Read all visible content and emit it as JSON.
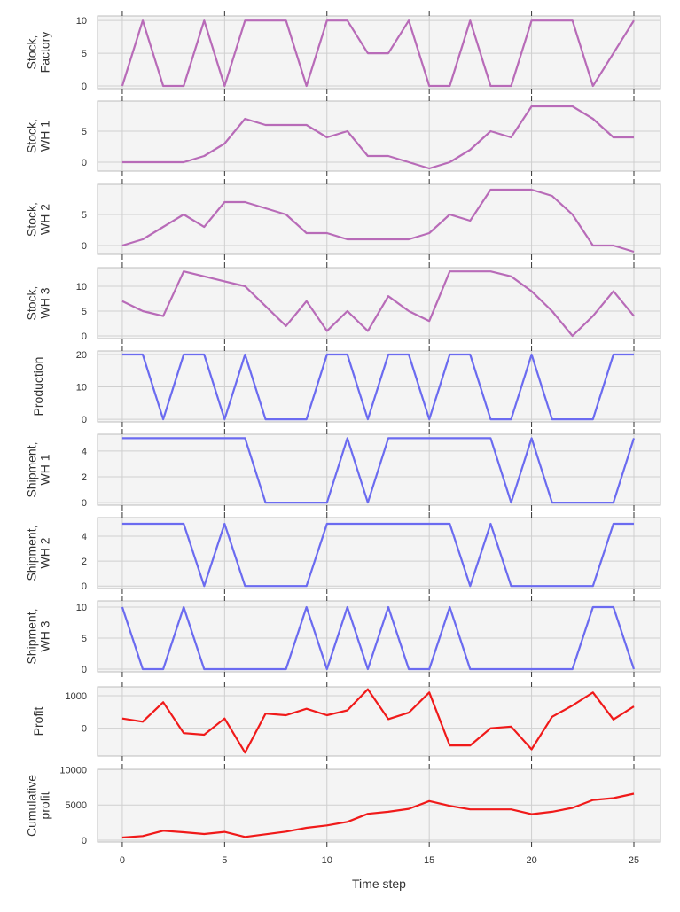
{
  "chart_data": [
    {
      "type": "line",
      "ylabel": [
        "Stock,",
        "Factory"
      ],
      "color": "#b86bb8",
      "ylim": [
        -0.4,
        10.7
      ],
      "yticks": [
        0,
        5,
        10
      ],
      "x": [
        0,
        1,
        2,
        3,
        4,
        5,
        6,
        7,
        8,
        9,
        10,
        11,
        12,
        13,
        14,
        15,
        16,
        17,
        18,
        19,
        20,
        21,
        22,
        23,
        24,
        25
      ],
      "values": [
        0,
        10,
        0,
        0,
        10,
        0,
        10,
        10,
        10,
        0,
        10,
        10,
        5,
        5,
        10,
        0,
        0,
        10,
        0,
        0,
        10,
        10,
        10,
        0,
        5,
        10
      ]
    },
    {
      "type": "line",
      "ylabel": [
        "Stock,",
        "WH 1"
      ],
      "color": "#b86bb8",
      "ylim": [
        -1.43,
        9.86
      ],
      "yticks": [
        0,
        5
      ],
      "x": [
        0,
        1,
        2,
        3,
        4,
        5,
        6,
        7,
        8,
        9,
        10,
        11,
        12,
        13,
        14,
        15,
        16,
        17,
        18,
        19,
        20,
        21,
        22,
        23,
        24,
        25
      ],
      "values": [
        0,
        0,
        0,
        0,
        1,
        3,
        7,
        6,
        6,
        6,
        4,
        5,
        1,
        1,
        0,
        -1,
        0,
        2,
        5,
        4,
        9,
        9,
        9,
        7,
        4,
        4
      ]
    },
    {
      "type": "line",
      "ylabel": [
        "Stock,",
        "WH 2"
      ],
      "color": "#b86bb8",
      "ylim": [
        -1.43,
        9.86
      ],
      "yticks": [
        0,
        5
      ],
      "x": [
        0,
        1,
        2,
        3,
        4,
        5,
        6,
        7,
        8,
        9,
        10,
        11,
        12,
        13,
        14,
        15,
        16,
        17,
        18,
        19,
        20,
        21,
        22,
        23,
        24,
        25
      ],
      "values": [
        0,
        1,
        3,
        5,
        3,
        7,
        7,
        6,
        5,
        2,
        2,
        1,
        1,
        1,
        1,
        2,
        5,
        4,
        9,
        9,
        9,
        8,
        5,
        0,
        0,
        -1
      ]
    },
    {
      "type": "line",
      "ylabel": [
        "Stock,",
        "WH 3"
      ],
      "color": "#b86bb8",
      "ylim": [
        -0.54,
        13.75
      ],
      "yticks": [
        0,
        5,
        10
      ],
      "x": [
        0,
        1,
        2,
        3,
        4,
        5,
        6,
        7,
        8,
        9,
        10,
        11,
        12,
        13,
        14,
        15,
        16,
        17,
        18,
        19,
        20,
        21,
        22,
        23,
        24,
        25
      ],
      "values": [
        7,
        5,
        4,
        13,
        12,
        11,
        10,
        6,
        2,
        7,
        1,
        5,
        1,
        8,
        5,
        3,
        13,
        13,
        13,
        12,
        9,
        5,
        0,
        4,
        9,
        4
      ]
    },
    {
      "type": "line",
      "ylabel": [
        "Production"
      ],
      "color": "#6b6bf0",
      "ylim": [
        -0.8,
        21.1
      ],
      "yticks": [
        0,
        10,
        20
      ],
      "x": [
        0,
        1,
        2,
        3,
        4,
        5,
        6,
        7,
        8,
        9,
        10,
        11,
        12,
        13,
        14,
        15,
        16,
        17,
        18,
        19,
        20,
        21,
        22,
        23,
        24,
        25
      ],
      "values": [
        20,
        20,
        0,
        20,
        20,
        0,
        20,
        0,
        0,
        0,
        20,
        20,
        0,
        20,
        20,
        0,
        20,
        20,
        0,
        0,
        20,
        0,
        0,
        0,
        20,
        20
      ]
    },
    {
      "type": "line",
      "ylabel": [
        "Shipment,",
        "WH 1"
      ],
      "color": "#6b6bf0",
      "ylim": [
        -0.2,
        5.3
      ],
      "yticks": [
        0,
        2,
        4
      ],
      "x": [
        0,
        1,
        2,
        3,
        4,
        5,
        6,
        7,
        8,
        9,
        10,
        11,
        12,
        13,
        14,
        15,
        16,
        17,
        18,
        19,
        20,
        21,
        22,
        23,
        24,
        25
      ],
      "values": [
        5,
        5,
        5,
        5,
        5,
        5,
        5,
        0,
        0,
        0,
        0,
        5,
        0,
        5,
        5,
        5,
        5,
        5,
        5,
        0,
        5,
        0,
        0,
        0,
        0,
        5
      ]
    },
    {
      "type": "line",
      "ylabel": [
        "Shipment,",
        "WH 2"
      ],
      "color": "#6b6bf0",
      "ylim": [
        -0.2,
        5.5
      ],
      "yticks": [
        0,
        2,
        4
      ],
      "x": [
        0,
        1,
        2,
        3,
        4,
        5,
        6,
        7,
        8,
        9,
        10,
        11,
        12,
        13,
        14,
        15,
        16,
        17,
        18,
        19,
        20,
        21,
        22,
        23,
        24,
        25
      ],
      "values": [
        5,
        5,
        5,
        5,
        0,
        5,
        0,
        0,
        0,
        0,
        5,
        5,
        5,
        5,
        5,
        5,
        5,
        0,
        5,
        0,
        0,
        0,
        0,
        0,
        5,
        5
      ]
    },
    {
      "type": "line",
      "ylabel": [
        "Shipment,",
        "WH 3"
      ],
      "color": "#6b6bf0",
      "ylim": [
        -0.43,
        11
      ],
      "yticks": [
        0,
        5,
        10
      ],
      "x": [
        0,
        1,
        2,
        3,
        4,
        5,
        6,
        7,
        8,
        9,
        10,
        11,
        12,
        13,
        14,
        15,
        16,
        17,
        18,
        19,
        20,
        21,
        22,
        23,
        24,
        25
      ],
      "values": [
        10,
        0,
        0,
        10,
        0,
        0,
        0,
        0,
        0,
        10,
        0,
        10,
        0,
        10,
        0,
        0,
        10,
        0,
        0,
        0,
        0,
        0,
        0,
        10,
        10,
        0
      ]
    },
    {
      "type": "line",
      "ylabel": [
        "Profit"
      ],
      "color": "#f01a1a",
      "ylim": [
        -855,
        1273
      ],
      "yticks": [
        0,
        1000
      ],
      "x": [
        0,
        1,
        2,
        3,
        4,
        5,
        6,
        7,
        8,
        9,
        10,
        11,
        12,
        13,
        14,
        15,
        16,
        17,
        18,
        19,
        20,
        21,
        22,
        23,
        24,
        25
      ],
      "values": [
        300,
        200,
        800,
        -150,
        -200,
        300,
        -750,
        450,
        400,
        600,
        400,
        550,
        1200,
        280,
        480,
        1100,
        -530,
        -530,
        0,
        50,
        -650,
        350,
        700,
        1100,
        270,
        670
      ]
    },
    {
      "type": "line",
      "ylabel": [
        "Cumulative",
        "profit"
      ],
      "color": "#f01a1a",
      "ylim": [
        -250,
        10050
      ],
      "yticks": [
        0,
        5000,
        10000
      ],
      "x": [
        0,
        1,
        2,
        3,
        4,
        5,
        6,
        7,
        8,
        9,
        10,
        11,
        12,
        13,
        14,
        15,
        16,
        17,
        18,
        19,
        20,
        21,
        22,
        23,
        24,
        25
      ],
      "values": [
        380,
        590,
        1340,
        1130,
        880,
        1180,
        460,
        840,
        1220,
        1760,
        2100,
        2600,
        3740,
        4030,
        4450,
        5550,
        4870,
        4370,
        4370,
        4370,
        3700,
        4030,
        4580,
        5710,
        5970,
        6600
      ],
      "xlabel": "Time step"
    }
  ],
  "shared_x": {
    "xlim": [
      -1.21,
      26.3
    ],
    "xticks": [
      0,
      5,
      10,
      15,
      20,
      25
    ],
    "xlabel": "Time step",
    "grid": true,
    "background": "#f4f4f4"
  }
}
